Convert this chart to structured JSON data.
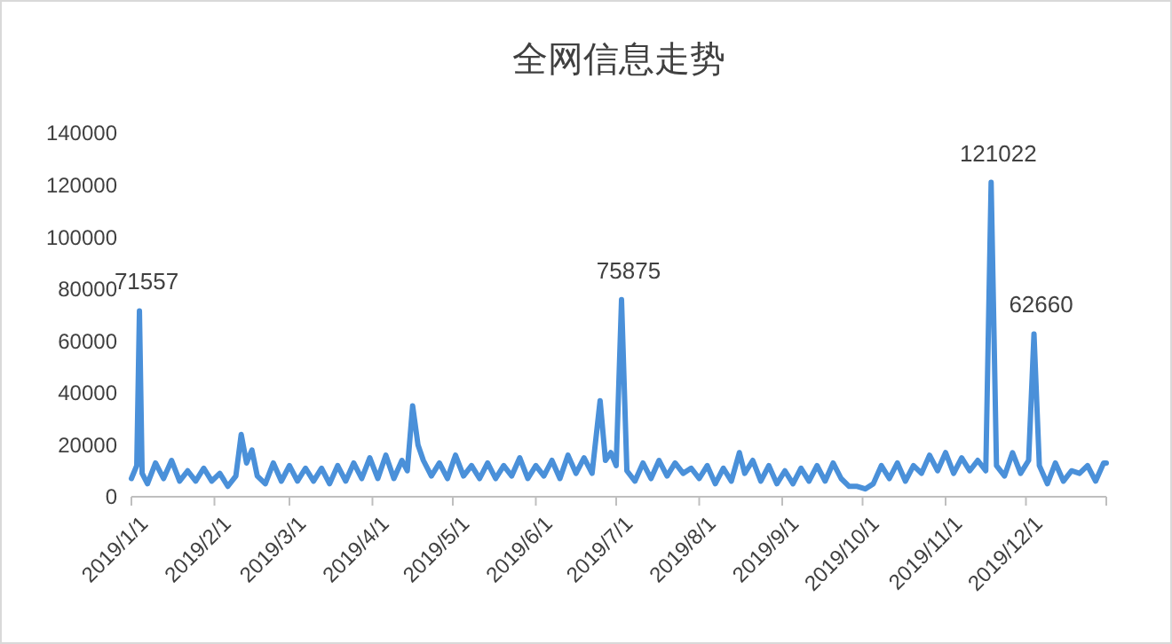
{
  "chart_data": {
    "type": "line",
    "title": "全网信息走势",
    "xlim": [
      "2019-01-01",
      "2019-12-31"
    ],
    "xticks": [
      {
        "value": "2019-01-01",
        "label": "2019/1/1"
      },
      {
        "value": "2019-02-01",
        "label": "2019/2/1"
      },
      {
        "value": "2019-03-01",
        "label": "2019/3/1"
      },
      {
        "value": "2019-04-01",
        "label": "2019/4/1"
      },
      {
        "value": "2019-05-01",
        "label": "2019/5/1"
      },
      {
        "value": "2019-06-01",
        "label": "2019/6/1"
      },
      {
        "value": "2019-07-01",
        "label": "2019/7/1"
      },
      {
        "value": "2019-08-01",
        "label": "2019/8/1"
      },
      {
        "value": "2019-09-01",
        "label": "2019/9/1"
      },
      {
        "value": "2019-10-01",
        "label": "2019/10/1"
      },
      {
        "value": "2019-11-01",
        "label": "2019/11/1"
      },
      {
        "value": "2019-12-01",
        "label": "2019/12/1"
      },
      {
        "value": "2019-12-31",
        "label": null
      }
    ],
    "ylim": [
      0,
      140000
    ],
    "yticks": [
      0,
      20000,
      40000,
      60000,
      80000,
      100000,
      120000,
      140000
    ],
    "grid": false,
    "marker": "none",
    "line_style": "solid",
    "x": [
      "2019-01-01",
      "2019-01-03",
      "2019-01-04",
      "2019-01-05",
      "2019-01-07",
      "2019-01-10",
      "2019-01-13",
      "2019-01-16",
      "2019-01-19",
      "2019-01-22",
      "2019-01-25",
      "2019-01-28",
      "2019-01-31",
      "2019-02-03",
      "2019-02-06",
      "2019-02-09",
      "2019-02-11",
      "2019-02-13",
      "2019-02-15",
      "2019-02-17",
      "2019-02-20",
      "2019-02-23",
      "2019-02-26",
      "2019-03-01",
      "2019-03-04",
      "2019-03-07",
      "2019-03-10",
      "2019-03-13",
      "2019-03-16",
      "2019-03-19",
      "2019-03-22",
      "2019-03-25",
      "2019-03-28",
      "2019-03-31",
      "2019-04-03",
      "2019-04-06",
      "2019-04-09",
      "2019-04-12",
      "2019-04-14",
      "2019-04-16",
      "2019-04-18",
      "2019-04-20",
      "2019-04-23",
      "2019-04-26",
      "2019-04-29",
      "2019-05-02",
      "2019-05-05",
      "2019-05-08",
      "2019-05-11",
      "2019-05-14",
      "2019-05-17",
      "2019-05-20",
      "2019-05-23",
      "2019-05-26",
      "2019-05-29",
      "2019-06-01",
      "2019-06-04",
      "2019-06-07",
      "2019-06-10",
      "2019-06-13",
      "2019-06-16",
      "2019-06-19",
      "2019-06-22",
      "2019-06-25",
      "2019-06-27",
      "2019-06-29",
      "2019-07-01",
      "2019-07-03",
      "2019-07-05",
      "2019-07-08",
      "2019-07-11",
      "2019-07-14",
      "2019-07-17",
      "2019-07-20",
      "2019-07-23",
      "2019-07-26",
      "2019-07-29",
      "2019-08-01",
      "2019-08-04",
      "2019-08-07",
      "2019-08-10",
      "2019-08-13",
      "2019-08-16",
      "2019-08-18",
      "2019-08-21",
      "2019-08-24",
      "2019-08-27",
      "2019-08-30",
      "2019-09-02",
      "2019-09-05",
      "2019-09-08",
      "2019-09-11",
      "2019-09-14",
      "2019-09-17",
      "2019-09-20",
      "2019-09-23",
      "2019-09-26",
      "2019-09-29",
      "2019-10-02",
      "2019-10-05",
      "2019-10-08",
      "2019-10-11",
      "2019-10-14",
      "2019-10-17",
      "2019-10-20",
      "2019-10-23",
      "2019-10-26",
      "2019-10-29",
      "2019-11-01",
      "2019-11-04",
      "2019-11-07",
      "2019-11-10",
      "2019-11-13",
      "2019-11-16",
      "2019-11-18",
      "2019-11-20",
      "2019-11-23",
      "2019-11-26",
      "2019-11-29",
      "2019-12-02",
      "2019-12-04",
      "2019-12-06",
      "2019-12-09",
      "2019-12-12",
      "2019-12-15",
      "2019-12-18",
      "2019-12-21",
      "2019-12-24",
      "2019-12-27",
      "2019-12-30",
      "2019-12-31"
    ],
    "series": [
      {
        "color": "#4a90d9",
        "values": [
          7000,
          12000,
          71557,
          9000,
          5000,
          13000,
          7000,
          14000,
          6000,
          10000,
          6000,
          11000,
          6000,
          9000,
          4000,
          8000,
          24000,
          13000,
          18000,
          8000,
          5000,
          13000,
          6000,
          12000,
          6000,
          11000,
          6000,
          11000,
          5000,
          12000,
          6000,
          13000,
          7000,
          15000,
          7000,
          16000,
          7000,
          14000,
          10000,
          35000,
          20000,
          14000,
          8000,
          13000,
          7000,
          16000,
          8000,
          12000,
          7000,
          13000,
          7000,
          12000,
          8000,
          15000,
          7000,
          12000,
          8000,
          14000,
          7000,
          16000,
          9000,
          15000,
          9000,
          37000,
          14000,
          17000,
          12000,
          75875,
          10000,
          6000,
          13000,
          7000,
          14000,
          8000,
          13000,
          9000,
          11000,
          7000,
          12000,
          5000,
          11000,
          6000,
          17000,
          9000,
          14000,
          6000,
          12000,
          5000,
          10000,
          5000,
          11000,
          6000,
          12000,
          6000,
          13000,
          7000,
          4000,
          4000,
          3000,
          5000,
          12000,
          7000,
          13000,
          6000,
          12000,
          9000,
          16000,
          10000,
          17000,
          9000,
          15000,
          10000,
          14000,
          10000,
          121022,
          12000,
          8000,
          17000,
          9000,
          14000,
          62660,
          12000,
          5000,
          13000,
          6000,
          10000,
          9000,
          12000,
          6000,
          13000,
          13000
        ]
      }
    ],
    "annotations": [
      {
        "text": "71557",
        "x": "2019-01-04",
        "y": 71557
      },
      {
        "text": "75875",
        "x": "2019-07-03",
        "y": 75875
      },
      {
        "text": "121022",
        "x": "2019-11-18",
        "y": 121022
      },
      {
        "text": "62660",
        "x": "2019-12-04",
        "y": 62660
      }
    ]
  }
}
